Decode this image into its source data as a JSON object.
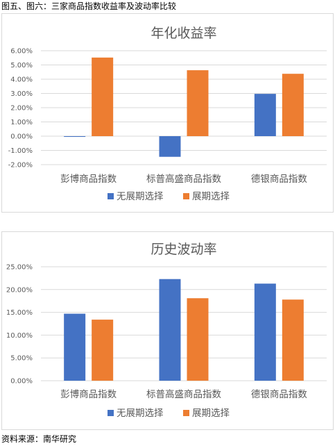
{
  "caption": "图五、图六：三家商品指数收益率及波动率比较",
  "source": "资料来源：南华研究",
  "colors": {
    "series1": "#4472C4",
    "series2": "#ED7D31",
    "grid": "#d9d9d9",
    "text": "#595959"
  },
  "chart_data": [
    {
      "type": "bar",
      "title": "年化收益率",
      "categories": [
        "彭博商品指数",
        "标普高盛商品指数",
        "德银商品指数"
      ],
      "series": [
        {
          "name": "无展期选择",
          "values": [
            -0.05,
            -1.45,
            2.97
          ]
        },
        {
          "name": "展期选择",
          "values": [
            5.52,
            4.63,
            4.38
          ]
        }
      ],
      "ylim": [
        -2,
        6
      ],
      "yticks": [
        6,
        5,
        4,
        3,
        2,
        1,
        0,
        -1,
        -2
      ],
      "ytick_labels": [
        "6.00%",
        "5.00%",
        "4.00%",
        "3.00%",
        "2.00%",
        "1.00%",
        "0.00%",
        "-1.00%",
        "-2.00%"
      ],
      "grid": true,
      "legend": "bottom"
    },
    {
      "type": "bar",
      "title": "历史波动率",
      "categories": [
        "彭博商品指数",
        "标普高盛商品指数",
        "德银商品指数"
      ],
      "series": [
        {
          "name": "无展期选择",
          "values": [
            14.7,
            22.3,
            21.3
          ]
        },
        {
          "name": "展期选择",
          "values": [
            13.4,
            18.1,
            17.8
          ]
        }
      ],
      "ylim": [
        0,
        25
      ],
      "yticks": [
        25,
        20,
        15,
        10,
        5,
        0
      ],
      "ytick_labels": [
        "25.00%",
        "20.00%",
        "15.00%",
        "10.00%",
        "5.00%",
        "0.00%"
      ],
      "grid": true,
      "legend": "bottom"
    }
  ]
}
